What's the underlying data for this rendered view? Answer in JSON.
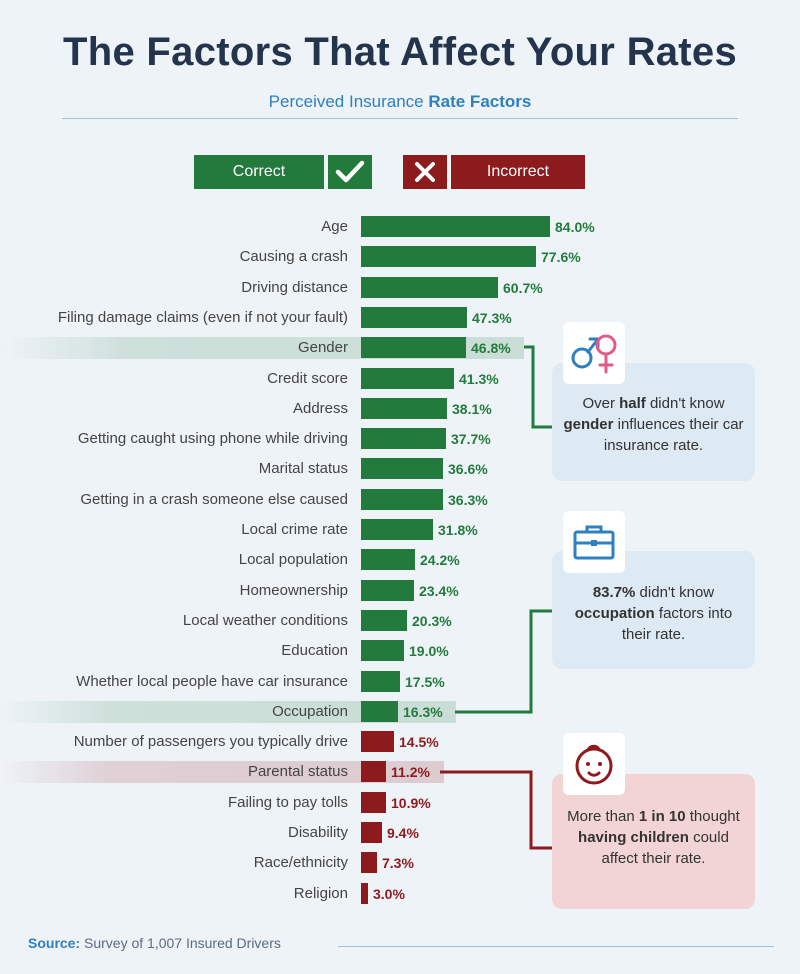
{
  "header": {
    "title": "The Factors That Affect Your Rates",
    "subtitle_plain": "Perceived Insurance ",
    "subtitle_bold": "Rate Factors"
  },
  "legend": {
    "correct_label": "Correct",
    "incorrect_label": "Incorrect",
    "correct_icon": "check-icon",
    "incorrect_icon": "x-icon"
  },
  "colors": {
    "correct": "#237a3d",
    "incorrect": "#8d1a1d",
    "title": "#24344d",
    "accent": "#2f80c0"
  },
  "chart_data": {
    "type": "bar",
    "orientation": "horizontal",
    "title": "Perceived Insurance Rate Factors",
    "xlabel": "",
    "ylabel": "",
    "xlim": [
      0,
      100
    ],
    "value_suffix": "%",
    "categories": [
      "Age",
      "Causing a crash",
      "Driving distance",
      "Filing damage claims (even if not your fault)",
      "Gender",
      "Credit score",
      "Address",
      "Getting caught using phone while driving",
      "Marital status",
      "Getting in a crash someone else caused",
      "Local crime rate",
      "Local population",
      "Homeownership",
      "Local weather conditions",
      "Education",
      "Whether local people have car insurance",
      "Occupation",
      "Number of passengers you typically drive",
      "Parental status",
      "Failing to pay tolls",
      "Disability",
      "Race/ethnicity",
      "Religion"
    ],
    "values": [
      84.0,
      77.6,
      60.7,
      47.3,
      46.8,
      41.3,
      38.1,
      37.7,
      36.6,
      36.3,
      31.8,
      24.2,
      23.4,
      20.3,
      19.0,
      17.5,
      16.3,
      14.5,
      11.2,
      10.9,
      9.4,
      7.3,
      3.0
    ],
    "labels": [
      "84.0%",
      "77.6%",
      "60.7%",
      "47.3%",
      "46.8%",
      "41.3%",
      "38.1%",
      "37.7%",
      "36.6%",
      "36.3%",
      "31.8%",
      "24.2%",
      "23.4%",
      "20.3%",
      "19.0%",
      "17.5%",
      "16.3%",
      "14.5%",
      "11.2%",
      "10.9%",
      "9.4%",
      "7.3%",
      "3.0%"
    ],
    "correct": [
      true,
      true,
      true,
      true,
      true,
      true,
      true,
      true,
      true,
      true,
      true,
      true,
      true,
      true,
      true,
      true,
      true,
      false,
      false,
      false,
      false,
      false,
      false
    ],
    "highlighted": [
      "Gender",
      "Occupation",
      "Parental status"
    ]
  },
  "callouts": [
    {
      "icon": "gender-symbols-icon",
      "before": "Over ",
      "b1": "half",
      "mid1": " didn't know ",
      "b2": "gender",
      "after": " influences their car insurance rate."
    },
    {
      "icon": "briefcase-icon",
      "b1": "83.7%",
      "mid1": " didn't know ",
      "b2": "occupation",
      "after": " factors into their rate."
    },
    {
      "icon": "baby-face-icon",
      "before": "More than ",
      "b1": "1 in 10",
      "mid1": " thought ",
      "b2": "having children",
      "after": " could affect their rate."
    }
  ],
  "source": {
    "label": "Source:",
    "text": " Survey of 1,007 Insured Drivers"
  }
}
